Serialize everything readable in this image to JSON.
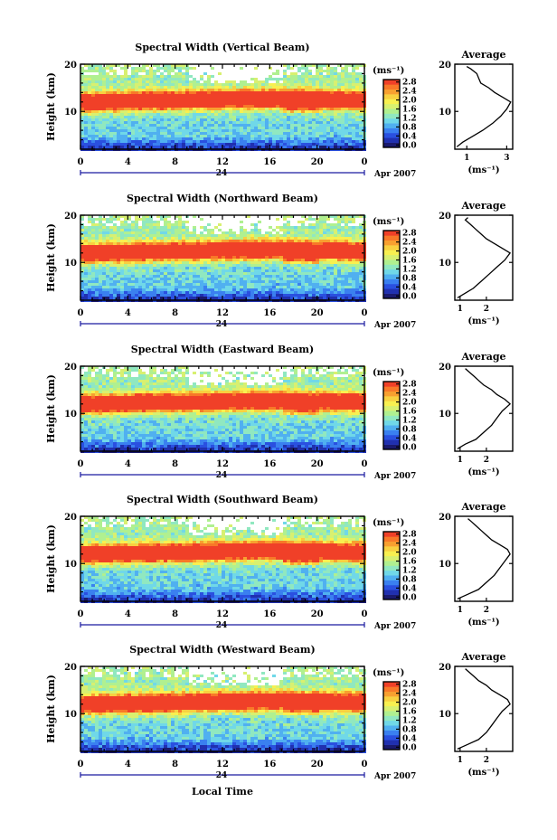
{
  "colors": {
    "colormap": [
      "#1a1a6e",
      "#2030b0",
      "#2a50e0",
      "#3a80f0",
      "#50b0f0",
      "#70d8e8",
      "#90e8c0",
      "#b0f090",
      "#d8f070",
      "#f8f050",
      "#f8d040",
      "#f8a030",
      "#f87828",
      "#f04028"
    ],
    "missing": "#ffffff"
  },
  "common": {
    "ylabel": "Height (km)",
    "xticks": [
      "0",
      "4",
      "8",
      "12",
      "16",
      "20",
      "0"
    ],
    "date_mark": "24",
    "month_label": "Apr 2007",
    "unit_label": "(ms⁻¹)",
    "colorbar_ticks": [
      "2.8",
      "2.4",
      "2.0",
      "1.6",
      "1.2",
      "0.8",
      "0.4",
      "0.0"
    ],
    "avg_title": "Average",
    "avg_xlabel": "(ms⁻¹)",
    "xlabel": "Local Time"
  },
  "chart_data": [
    {
      "type": "heatmap",
      "title": "Spectral Width (Vertical Beam)",
      "xlabel": "Local Time",
      "ylabel": "Height (km)",
      "xlim": [
        0,
        24
      ],
      "ylim": [
        2,
        20
      ],
      "yticks": [
        10,
        20
      ],
      "clim": [
        0.0,
        2.8
      ],
      "average_profile": {
        "title": "Average",
        "xlim": [
          0.4,
          3.3
        ],
        "xticks": [
          "1",
          "3"
        ],
        "x": [
          0.5,
          0.8,
          1.2,
          1.8,
          2.3,
          2.7,
          3.0,
          3.2,
          2.8,
          2.4,
          2.1,
          1.7,
          1.6,
          1.5,
          1.2,
          1.0
        ],
        "y": [
          2.5,
          3.5,
          4.5,
          6,
          7.5,
          9,
          10.5,
          12,
          13,
          14,
          15,
          16,
          17,
          18,
          19,
          19.5
        ]
      }
    },
    {
      "type": "heatmap",
      "title": "Spectral Width (Northward Beam)",
      "xlabel": "Local Time",
      "ylabel": "Height (km)",
      "xlim": [
        0,
        24
      ],
      "ylim": [
        2,
        20
      ],
      "yticks": [
        10,
        20
      ],
      "clim": [
        0.0,
        2.8
      ],
      "average_profile": {
        "title": "Average",
        "xlim": [
          0.8,
          3.0
        ],
        "xticks": [
          "1",
          "2"
        ],
        "x": [
          0.9,
          1.2,
          1.5,
          1.8,
          2.1,
          2.4,
          2.7,
          2.9,
          2.6,
          2.3,
          2.0,
          1.8,
          1.6,
          1.4,
          1.2,
          1.3
        ],
        "y": [
          2.5,
          3.5,
          4.5,
          6,
          7.5,
          9,
          10.5,
          12,
          13,
          14,
          15,
          16,
          17,
          18,
          19,
          19.5
        ]
      }
    },
    {
      "type": "heatmap",
      "title": "Spectral Width (Eastward Beam)",
      "xlabel": "Local Time",
      "ylabel": "Height (km)",
      "xlim": [
        0,
        24
      ],
      "ylim": [
        2,
        20
      ],
      "yticks": [
        10,
        20
      ],
      "clim": [
        0.0,
        2.8
      ],
      "average_profile": {
        "title": "Average",
        "xlim": [
          0.8,
          3.0
        ],
        "xticks": [
          "1",
          "2"
        ],
        "x": [
          0.9,
          1.2,
          1.6,
          1.9,
          2.2,
          2.4,
          2.6,
          2.9,
          2.7,
          2.4,
          2.2,
          1.9,
          1.7,
          1.5,
          1.3,
          1.2
        ],
        "y": [
          2.5,
          3.5,
          4.5,
          6,
          7.5,
          9,
          10.5,
          12,
          13,
          14,
          15,
          16,
          17,
          18,
          19,
          19.5
        ]
      }
    },
    {
      "type": "heatmap",
      "title": "Spectral Width (Southward Beam)",
      "xlabel": "Local Time",
      "ylabel": "Height (km)",
      "xlim": [
        0,
        24
      ],
      "ylim": [
        2,
        20
      ],
      "yticks": [
        10,
        20
      ],
      "clim": [
        0.0,
        2.8
      ],
      "average_profile": {
        "title": "Average",
        "xlim": [
          0.8,
          3.0
        ],
        "xticks": [
          "1",
          "2"
        ],
        "x": [
          0.9,
          1.3,
          1.7,
          2.0,
          2.3,
          2.5,
          2.7,
          2.9,
          2.8,
          2.5,
          2.2,
          2.0,
          1.8,
          1.6,
          1.4,
          1.3
        ],
        "y": [
          2.5,
          3.5,
          4.5,
          6,
          7.5,
          9,
          10.5,
          12,
          13,
          14,
          15,
          16,
          17,
          18,
          19,
          19.5
        ]
      }
    },
    {
      "type": "heatmap",
      "title": "Spectral Width (Westward Beam)",
      "xlabel": "Local Time",
      "ylabel": "Height (km)",
      "xlim": [
        0,
        24
      ],
      "ylim": [
        2,
        20
      ],
      "yticks": [
        10,
        20
      ],
      "clim": [
        0.0,
        2.8
      ],
      "average_profile": {
        "title": "Average",
        "xlim": [
          0.8,
          3.0
        ],
        "xticks": [
          "1",
          "2"
        ],
        "x": [
          0.9,
          1.3,
          1.7,
          2.0,
          2.2,
          2.4,
          2.6,
          2.9,
          2.8,
          2.5,
          2.2,
          2.0,
          1.7,
          1.5,
          1.3,
          1.2
        ],
        "y": [
          2.5,
          3.5,
          4.5,
          6,
          7.5,
          9,
          10.5,
          12,
          13,
          14,
          15,
          16,
          17,
          18,
          19,
          19.5
        ]
      }
    }
  ]
}
